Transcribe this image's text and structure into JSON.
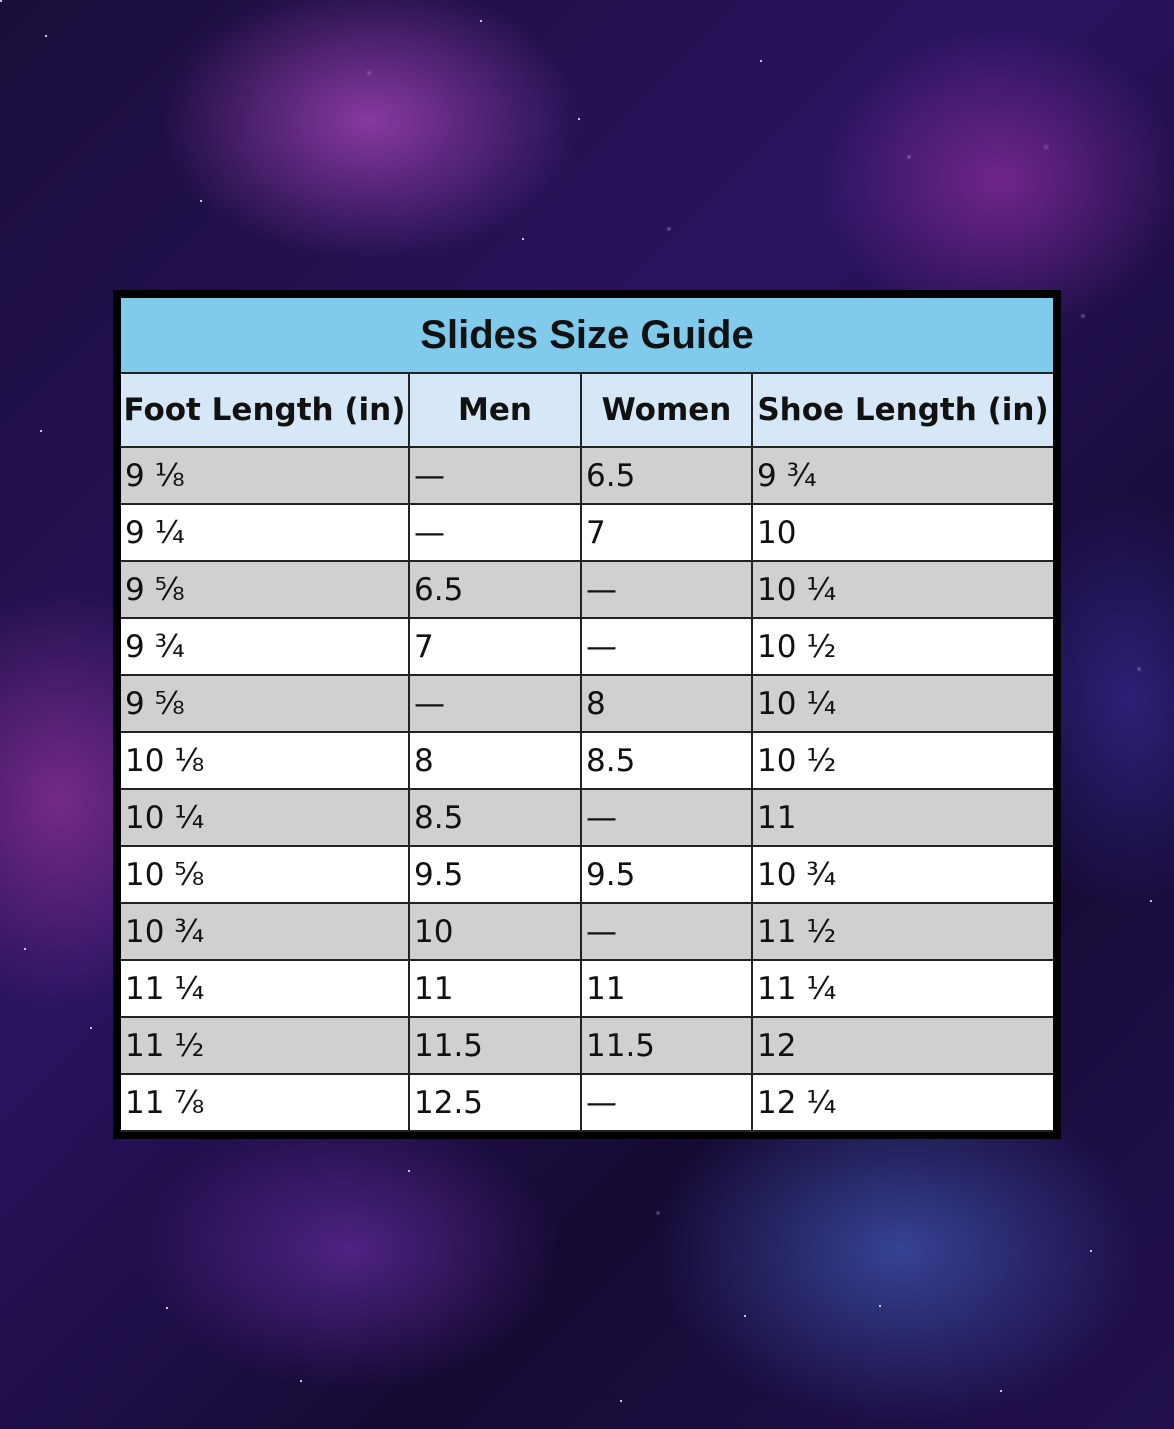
{
  "title": "Slides Size Guide",
  "colors": {
    "title_bg": "#80cbec",
    "header_bg": "#d6e8f7",
    "stripe": "#d0d0d0",
    "frame": "#000000"
  },
  "headers": [
    "Foot Length (in)",
    "Men",
    "Women",
    "Shoe Length (in)"
  ],
  "rows": [
    [
      "9 ⅛",
      "—",
      "6.5",
      "9 ¾"
    ],
    [
      "9 ¼",
      "—",
      "7",
      "10"
    ],
    [
      "9 ⅝",
      "6.5",
      "—",
      "10 ¼"
    ],
    [
      "9 ¾",
      "7",
      "—",
      "10 ½"
    ],
    [
      "9 ⅝",
      "—",
      "8",
      "10 ¼"
    ],
    [
      "10 ⅛",
      "8",
      "8.5",
      "10 ½"
    ],
    [
      "10 ¼",
      "8.5",
      "—",
      "11"
    ],
    [
      "10 ⅝",
      "9.5",
      "9.5",
      "10 ¾"
    ],
    [
      "10 ¾",
      "10",
      "—",
      "11 ½"
    ],
    [
      "11 ¼",
      "11",
      "11",
      "11 ¼"
    ],
    [
      "11 ½",
      "11.5",
      "11.5",
      "12"
    ],
    [
      "11 ⅞",
      "12.5",
      "—",
      "12 ¼"
    ]
  ]
}
